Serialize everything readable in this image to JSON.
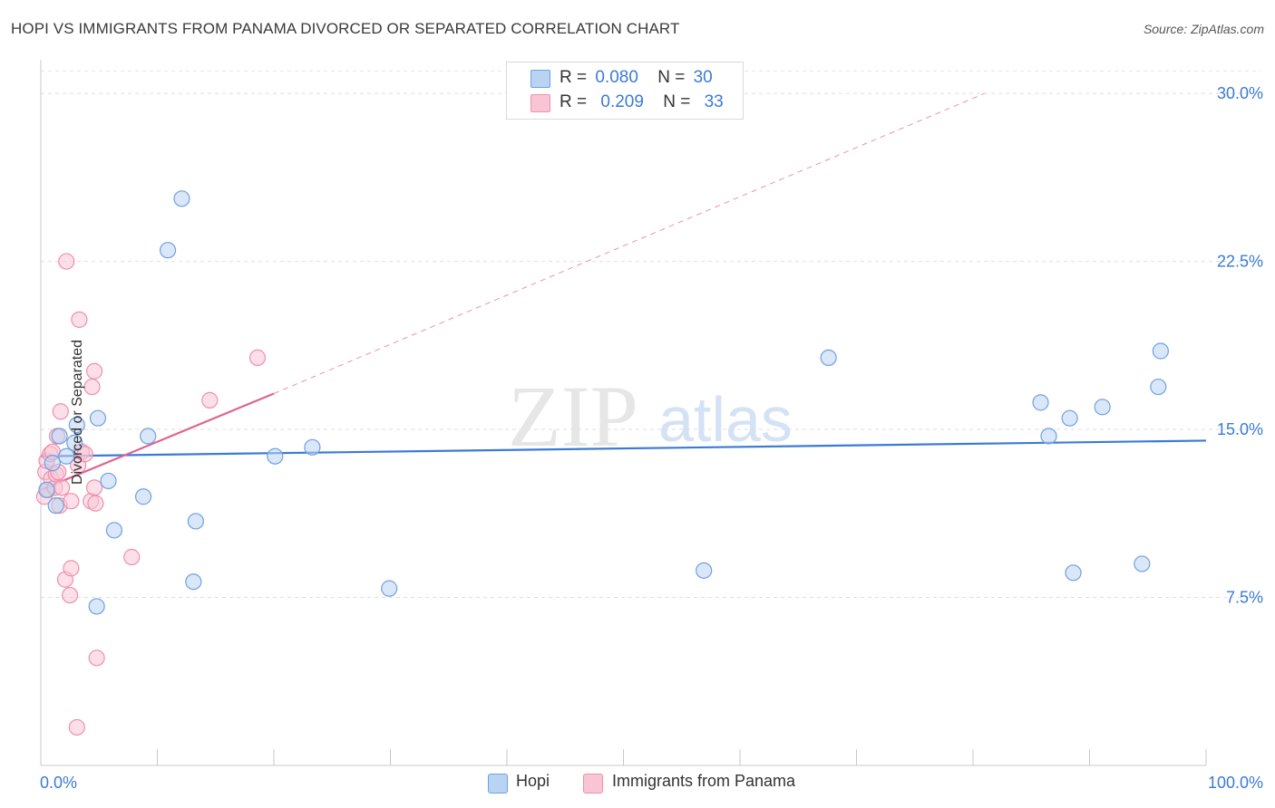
{
  "title": "HOPI VS IMMIGRANTS FROM PANAMA DIVORCED OR SEPARATED CORRELATION CHART",
  "source": "Source: ZipAtlas.com",
  "watermark": {
    "zip": "ZIP",
    "atlas": "atlas"
  },
  "legend": {
    "r_label": "R =",
    "n_label": "N =",
    "series": [
      {
        "name": "Hopi",
        "r": "0.080",
        "n": "30",
        "fill": "#b9d3f3",
        "stroke": "#6fa1e0"
      },
      {
        "name": "Immigrants from Panama",
        "r": "0.209",
        "n": "33",
        "fill": "#f9c5d5",
        "stroke": "#ef8fab"
      }
    ]
  },
  "chart_data": {
    "type": "scatter",
    "title": "HOPI VS IMMIGRANTS FROM PANAMA DIVORCED OR SEPARATED CORRELATION CHART",
    "xlabel": "",
    "ylabel": "Divorced or Separated",
    "xlim": [
      0,
      100
    ],
    "ylim": [
      0,
      31.5
    ],
    "x_tick_labels": [
      "0.0%",
      "100.0%"
    ],
    "y_ticks": [
      7.5,
      15.0,
      22.5,
      30.0
    ],
    "y_tick_labels": [
      "7.5%",
      "15.0%",
      "22.5%",
      "30.0%"
    ],
    "grid": true,
    "series": [
      {
        "name": "Hopi",
        "color": "#3a7bd5",
        "points": [
          [
            0.5,
            12.3
          ],
          [
            1.0,
            13.5
          ],
          [
            1.3,
            11.6
          ],
          [
            1.6,
            14.7
          ],
          [
            2.2,
            13.8
          ],
          [
            2.9,
            14.4
          ],
          [
            3.1,
            15.2
          ],
          [
            4.8,
            7.1
          ],
          [
            4.9,
            15.5
          ],
          [
            5.8,
            12.7
          ],
          [
            6.3,
            10.5
          ],
          [
            8.8,
            12.0
          ],
          [
            9.2,
            14.7
          ],
          [
            10.9,
            23.0
          ],
          [
            12.1,
            25.3
          ],
          [
            13.1,
            8.2
          ],
          [
            13.3,
            10.9
          ],
          [
            20.1,
            13.8
          ],
          [
            23.3,
            14.2
          ],
          [
            29.9,
            7.9
          ],
          [
            56.9,
            8.7
          ],
          [
            67.6,
            18.2
          ],
          [
            85.8,
            16.2
          ],
          [
            86.5,
            14.7
          ],
          [
            88.3,
            15.5
          ],
          [
            88.6,
            8.6
          ],
          [
            91.1,
            16.0
          ],
          [
            94.5,
            9.0
          ],
          [
            95.9,
            16.9
          ],
          [
            96.1,
            18.5
          ]
        ],
        "trend": {
          "x0": 0,
          "y0": 13.8,
          "x1": 100,
          "y1": 14.5,
          "style": "solid"
        }
      },
      {
        "name": "Immigrants from Panama",
        "color": "#e0648f",
        "points": [
          [
            0.3,
            12.0
          ],
          [
            0.4,
            13.1
          ],
          [
            0.5,
            13.6
          ],
          [
            0.6,
            12.3
          ],
          [
            0.8,
            13.9
          ],
          [
            0.9,
            12.8
          ],
          [
            1.0,
            14.0
          ],
          [
            1.2,
            12.4
          ],
          [
            1.3,
            13.0
          ],
          [
            1.4,
            14.7
          ],
          [
            1.5,
            13.1
          ],
          [
            1.6,
            11.6
          ],
          [
            1.7,
            15.8
          ],
          [
            1.8,
            12.4
          ],
          [
            2.1,
            8.3
          ],
          [
            2.2,
            22.5
          ],
          [
            2.5,
            7.6
          ],
          [
            2.6,
            8.8
          ],
          [
            2.6,
            11.8
          ],
          [
            3.1,
            1.7
          ],
          [
            3.2,
            13.4
          ],
          [
            3.3,
            19.9
          ],
          [
            3.5,
            14.0
          ],
          [
            3.8,
            13.9
          ],
          [
            4.3,
            11.8
          ],
          [
            4.4,
            16.9
          ],
          [
            4.6,
            12.4
          ],
          [
            4.6,
            17.6
          ],
          [
            4.7,
            11.7
          ],
          [
            4.8,
            4.8
          ],
          [
            7.8,
            9.3
          ],
          [
            14.5,
            16.3
          ],
          [
            18.6,
            18.2
          ]
        ],
        "trend": {
          "x0": 0,
          "y0": 12.3,
          "x1": 20,
          "y1": 16.6,
          "style": "solid",
          "extension": {
            "x1": 81,
            "y1": 30.0,
            "style": "dashed"
          }
        }
      }
    ]
  }
}
